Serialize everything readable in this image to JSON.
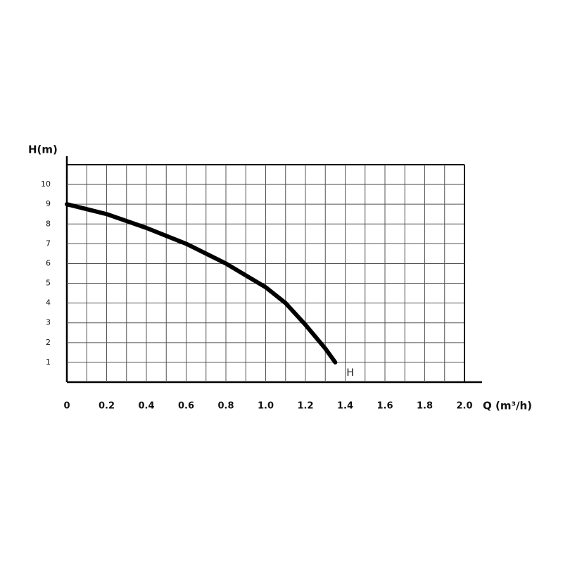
{
  "chart_data": {
    "type": "line",
    "y_label": "H(m)",
    "x_label": "Q (m³/h)",
    "x": [
      0,
      0.2,
      0.4,
      0.6,
      0.8,
      1.0,
      1.1,
      1.2,
      1.3,
      1.35
    ],
    "series": [
      {
        "name": "H",
        "color": "#000000",
        "values": [
          9,
          8.5,
          7.8,
          7.0,
          6.0,
          4.8,
          4.0,
          2.9,
          1.7,
          1.0
        ]
      }
    ],
    "xlim": [
      0,
      2
    ],
    "xticks": [
      0,
      0.2,
      0.4,
      0.6,
      0.8,
      {
        "value": 1,
        "label": "1.0"
      },
      1.2,
      1.4,
      1.6,
      1.8,
      {
        "value": 2,
        "label": "2.0"
      }
    ],
    "ylim": [
      0,
      11
    ],
    "yticks": [
      1,
      2,
      3,
      4,
      5,
      6,
      7,
      8,
      9,
      10
    ],
    "grid": true
  }
}
